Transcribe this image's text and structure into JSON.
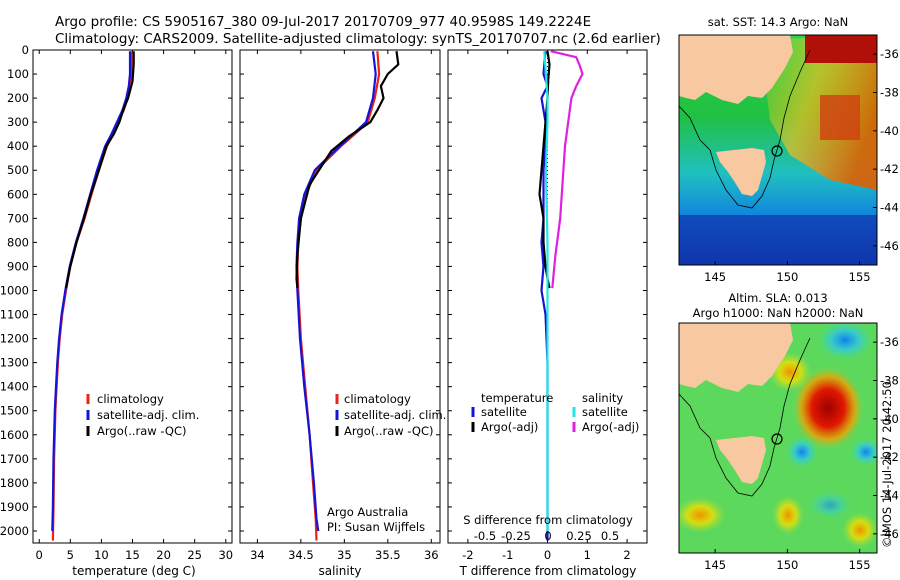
{
  "header": {
    "line1": "Argo profile: CS 5905167_380 09-Jul-2017 20170709_977 40.9598S 149.2224E",
    "line2": "Climatology: CARS2009. Satellite-adjusted climatology: synTS_20170707.nc (2.6d earlier)"
  },
  "colors": {
    "climatology": "#e8221c",
    "satellite": "#1414d8",
    "argo": "#000000",
    "sat_salinity": "#22e6e6",
    "argo_salinity": "#e020e0",
    "land": "#f8c8a0"
  },
  "depth_axis": {
    "ylim": [
      0,
      2050
    ],
    "ticks": [
      0,
      100,
      200,
      300,
      400,
      500,
      600,
      700,
      800,
      900,
      1000,
      1100,
      1200,
      1300,
      1400,
      1500,
      1600,
      1700,
      1800,
      1900,
      2000
    ]
  },
  "chart_data": [
    {
      "type": "line",
      "xlabel": "temperature (deg C)",
      "xlim": [
        -1,
        31
      ],
      "xticks": [
        0,
        5,
        10,
        15,
        20,
        25,
        30
      ],
      "legend": [
        "climatology",
        "satellite-adj. clim.",
        "Argo(..raw -QC)"
      ],
      "series": [
        {
          "name": "climatology",
          "x": [
            14.9,
            14.8,
            14.5,
            14.2,
            13.6,
            12.7,
            11.8,
            10.9,
            9.6,
            8.4,
            7.3,
            6.0,
            5.0,
            4.3,
            3.7,
            3.3,
            3.0,
            2.8,
            2.6,
            2.4,
            2.3,
            2.2
          ],
          "depth": [
            5,
            100,
            150,
            200,
            250,
            300,
            350,
            400,
            500,
            600,
            700,
            800,
            900,
            1000,
            1100,
            1200,
            1300,
            1400,
            1500,
            1700,
            1900,
            2040
          ]
        },
        {
          "name": "satellite-adj. clim.",
          "x": [
            14.6,
            14.6,
            14.4,
            14.0,
            13.4,
            12.5,
            11.6,
            10.6,
            9.3,
            8.2,
            7.1,
            5.9,
            4.9,
            4.2,
            3.6,
            3.2,
            2.9,
            2.7,
            2.5,
            2.3,
            2.2,
            2.1
          ],
          "depth": [
            5,
            100,
            150,
            200,
            250,
            300,
            350,
            400,
            500,
            600,
            700,
            800,
            900,
            1000,
            1100,
            1200,
            1300,
            1400,
            1500,
            1700,
            1900,
            2000
          ]
        },
        {
          "name": "Argo(..raw -QC)",
          "x": [
            15.2,
            15.2,
            15.0,
            14.3,
            13.5,
            12.9,
            12.0,
            10.8,
            9.6,
            8.3,
            7.2,
            6.0,
            5.0,
            4.3
          ],
          "depth": [
            5,
            60,
            130,
            200,
            250,
            300,
            350,
            400,
            500,
            600,
            700,
            800,
            900,
            990
          ]
        }
      ]
    },
    {
      "type": "line",
      "xlabel": "salinity",
      "xlim": [
        33.8,
        36.1
      ],
      "xticks": [
        34,
        34.5,
        35,
        35.5,
        36
      ],
      "legend": [
        "climatology",
        "satellite-adj. clim.",
        "Argo(..raw -QC)"
      ],
      "annotation": [
        "Argo Australia",
        "PI: Susan Wijffels"
      ],
      "series": [
        {
          "name": "climatology",
          "x": [
            35.38,
            35.4,
            35.35,
            35.27,
            35.12,
            34.96,
            34.82,
            34.68,
            34.56,
            34.5,
            34.47,
            34.46,
            34.47,
            34.5,
            34.55,
            34.6,
            34.64,
            34.67,
            34.68
          ],
          "depth": [
            5,
            100,
            200,
            300,
            350,
            400,
            450,
            500,
            600,
            700,
            800,
            900,
            1000,
            1200,
            1400,
            1600,
            1800,
            1950,
            2040
          ]
        },
        {
          "name": "satellite-adj. clim.",
          "x": [
            35.33,
            35.36,
            35.33,
            35.25,
            35.1,
            34.95,
            34.8,
            34.66,
            34.54,
            34.48,
            34.46,
            34.45,
            34.46,
            34.49,
            34.54,
            34.6,
            34.65,
            34.68,
            34.7
          ],
          "depth": [
            5,
            100,
            200,
            300,
            350,
            400,
            450,
            500,
            600,
            700,
            800,
            900,
            1000,
            1200,
            1400,
            1600,
            1800,
            1950,
            2000
          ]
        },
        {
          "name": "Argo(..raw -QC)",
          "x": [
            35.6,
            35.62,
            35.5,
            35.42,
            35.45,
            35.38,
            35.3,
            35.05,
            34.85,
            34.6,
            34.5,
            34.46,
            34.45,
            34.46
          ],
          "depth": [
            5,
            60,
            100,
            150,
            200,
            250,
            300,
            360,
            420,
            560,
            700,
            850,
            950,
            990
          ]
        }
      ]
    },
    {
      "type": "line",
      "xlabel_top": "S difference from climatology",
      "xlabel": "T difference from climatology",
      "xlim": [
        -2.5,
        2.5
      ],
      "xticks": [
        -2,
        -1,
        0,
        1,
        2
      ],
      "s_ticks": [
        "-0.5",
        "-0.25",
        "0",
        "0.25",
        "0.5"
      ],
      "legend_groups": [
        {
          "title": "temperature",
          "items": [
            "satellite",
            "Argo(-adj)"
          ]
        },
        {
          "title": "salinity",
          "items": [
            "satellite",
            "Argo(-adj)"
          ]
        }
      ],
      "series": [
        {
          "name": "satellite",
          "x": [
            -0.05,
            -0.1,
            0.0,
            -0.15,
            -0.05,
            -0.05,
            -0.1,
            -0.1,
            -0.1,
            -0.15,
            -0.1,
            -0.15,
            -0.05,
            0.0,
            0.0,
            0.0,
            0.0
          ],
          "depth": [
            5,
            100,
            150,
            200,
            300,
            400,
            500,
            600,
            700,
            800,
            900,
            1000,
            1100,
            1300,
            1600,
            1900,
            2040
          ]
        },
        {
          "name": "Argo(-adj)",
          "x": [
            0.0,
            0.05,
            0.02,
            0.0,
            -0.05,
            -0.1,
            -0.15,
            -0.2,
            -0.1,
            -0.1,
            -0.05,
            0.0,
            0.05
          ],
          "depth": [
            5,
            60,
            120,
            200,
            300,
            400,
            500,
            600,
            700,
            800,
            900,
            950,
            990
          ]
        },
        {
          "name": "sat salinity",
          "x": [
            -0.02,
            -0.01,
            0.0,
            0.0,
            -0.01,
            0.0,
            0.0,
            0.0,
            0.0
          ],
          "depth": [
            5,
            100,
            200,
            300,
            500,
            800,
            1200,
            1600,
            2000
          ]
        },
        {
          "name": "argo salinity",
          "x": [
            0.02,
            0.18,
            0.2,
            0.22,
            0.18,
            0.15,
            0.14,
            0.13,
            0.12,
            0.11,
            0.1,
            0.09,
            0.08,
            0.06,
            0.05,
            0.04,
            0.03
          ],
          "depth": [
            5,
            30,
            60,
            100,
            150,
            200,
            250,
            300,
            350,
            400,
            500,
            600,
            700,
            800,
            850,
            920,
            990
          ]
        }
      ]
    }
  ],
  "maps": [
    {
      "title": "sat. SST: 14.3 Argo: NaN",
      "xlim": [
        142.5,
        156.2
      ],
      "ylim": [
        -47,
        -35
      ],
      "xticks": [
        "145",
        "150",
        "155"
      ],
      "yticks": [
        "-36",
        "-38",
        "-40",
        "-42",
        "-44",
        "-46"
      ],
      "float": [
        149.22,
        -40.96
      ]
    },
    {
      "title": "Altim. SLA: 0.013",
      "title2": "Argo h1000: NaN h2000: NaN",
      "xlim": [
        142.5,
        156.2
      ],
      "ylim": [
        -47,
        -35
      ],
      "xticks": [
        "145",
        "150",
        "155"
      ],
      "yticks": [
        "-36",
        "-38",
        "-40",
        "-42",
        "-44",
        "-46"
      ],
      "float": [
        149.22,
        -40.96
      ]
    }
  ],
  "credit": "©IMOS 14-Jul-2017 20:42:50"
}
